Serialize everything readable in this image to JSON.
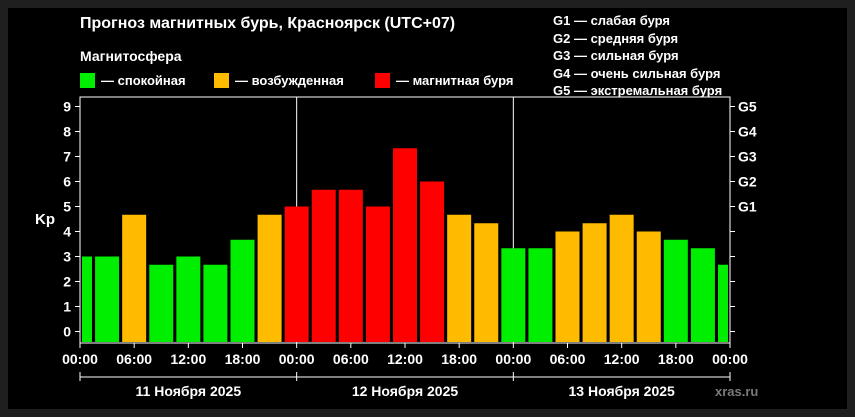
{
  "title": "Прогноз магнитных бурь, Красноярск (UTC+07)",
  "subtitle": "Магнитосфера",
  "legend": [
    {
      "label": "— спокойная",
      "color": "#00ee00"
    },
    {
      "label": "— возбужденная",
      "color": "#ffbb00"
    },
    {
      "label": "— магнитная буря",
      "color": "#ff0000"
    }
  ],
  "g_scale": [
    "G1 — слабая буря",
    "G2 — средняя буря",
    "G3 — сильная буря",
    "G4 — очень сильная буря",
    "G5 — экстремальная буря"
  ],
  "watermark": "xras.ru",
  "chart_data": {
    "type": "bar",
    "ylabel": "Kp",
    "ylim": [
      0,
      9
    ],
    "yticks": [
      "0",
      "1",
      "2",
      "3",
      "4",
      "5",
      "6",
      "7",
      "8",
      "9"
    ],
    "right_ticks": [
      {
        "value": 5,
        "label": "G1"
      },
      {
        "value": 6,
        "label": "G2"
      },
      {
        "value": 7,
        "label": "G3"
      },
      {
        "value": 8,
        "label": "G4"
      },
      {
        "value": 9,
        "label": "G5"
      }
    ],
    "xticks": [
      "00:00",
      "06:00",
      "12:00",
      "18:00",
      "00:00",
      "06:00",
      "12:00",
      "18:00",
      "00:00",
      "06:00",
      "12:00",
      "18:00",
      "00:00"
    ],
    "days": [
      "11 Ноября 2025",
      "12 Ноября 2025",
      "13 Ноября 2025"
    ],
    "values": [
      3.0,
      3.0,
      4.67,
      2.67,
      3.0,
      2.67,
      3.67,
      4.67,
      5.0,
      5.67,
      5.67,
      5.0,
      7.33,
      6.0,
      4.67,
      4.33,
      3.33,
      3.33,
      4.0,
      4.33,
      4.67,
      4.0,
      3.67,
      3.33,
      2.67
    ],
    "levels": [
      "quiet",
      "quiet",
      "active",
      "quiet",
      "quiet",
      "quiet",
      "quiet",
      "active",
      "storm",
      "storm",
      "storm",
      "storm",
      "storm",
      "storm",
      "active",
      "active",
      "quiet",
      "quiet",
      "active",
      "active",
      "active",
      "active",
      "quiet",
      "quiet",
      "quiet"
    ],
    "level_colors": {
      "quiet": "#00ee00",
      "active": "#ffbb00",
      "storm": "#ff0000"
    }
  }
}
